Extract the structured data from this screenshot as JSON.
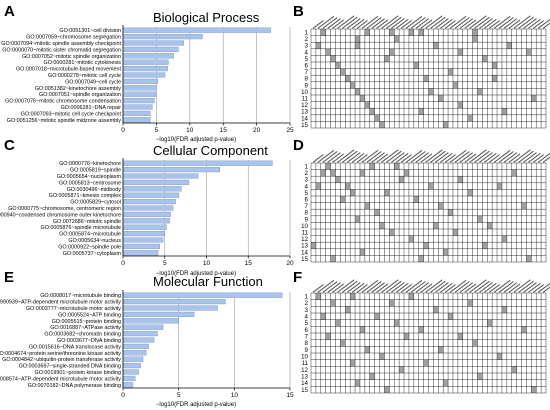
{
  "colors": {
    "bar": "#a9c3ea",
    "bar_stroke": "#5b7fb8",
    "cell_on": "#a0a0a0",
    "cell_off": "#ffffff",
    "grid": "#000000"
  },
  "panels": {
    "A": {
      "letter": "A",
      "title": "Biological Process",
      "xlabel": "−log10(FDR adjusted p-value)"
    },
    "B": {
      "letter": "B"
    },
    "C": {
      "letter": "C",
      "title": "Cellular Component",
      "xlabel": "−log10(FDR adjusted p-value)"
    },
    "D": {
      "letter": "D"
    },
    "E": {
      "letter": "E",
      "title": "Molecular Function",
      "xlabel": "−log10(FDR adjusted p-value)"
    },
    "F": {
      "letter": "F"
    }
  },
  "chart_data": [
    {
      "id": "A",
      "type": "bar",
      "orientation": "horizontal",
      "title": "Biological Process",
      "xlabel": "−log10(FDR adjusted p-value)",
      "xlim": [
        0,
        25
      ],
      "xticks": [
        0,
        5,
        10,
        15,
        20,
        25
      ],
      "categories": [
        "GO:0051301~cell division",
        "GO:0007059~chromosome segregation",
        "GO:0007094~mitotic spindle assembly checkpoint",
        "GO:0000070~mitotic sister chromatid segregation",
        "GO:0007052~mitotic spindle organization",
        "GO:0000281~mitotic cytokinesis",
        "GO:0007018~microtubule-based movement",
        "GO:0000278~mitotic cell cycle",
        "GO:0007049~cell cycle",
        "GO:0051382~kinetochore assembly",
        "GO:0007051~spindle organization",
        "GO:0007076~mitotic chromosome condensation",
        "GO:0006281~DNA repair",
        "GO:0007093~mitotic cell cycle checkpoint",
        "GO:0051256~mitotic spindle midzone assembly"
      ],
      "values": [
        22.1,
        11.9,
        9.1,
        8.3,
        7.6,
        6.8,
        6.7,
        6.3,
        5.2,
        5.0,
        4.9,
        4.7,
        4.4,
        4.1,
        4.1
      ]
    },
    {
      "id": "C",
      "type": "bar",
      "orientation": "horizontal",
      "title": "Cellular Component",
      "xlabel": "−log10(FDR adjusted p-value)",
      "xlim": [
        0,
        20
      ],
      "xticks": [
        0,
        5,
        10,
        15,
        20
      ],
      "categories": [
        "GO:0000776~kinetochore",
        "GO:0005819~spindle",
        "GO:0005654~nucleoplasm",
        "GO:0005813~centrosome",
        "GO:0030496~midbody",
        "GO:0005871~kinesin complex",
        "GO:0005829~cytosol",
        "GO:0000775~chromosome, centromeric region",
        "GO:0000940~condensed chromosome outer kinetochore",
        "GO:0072686~mitotic spindle",
        "GO:0005876~spindle microtubule",
        "GO:0005874~microtubule",
        "GO:0005634~nucleus",
        "GO:0000922~spindle pole",
        "GO:0005737~cytoplasm"
      ],
      "values": [
        17.9,
        11.6,
        9.0,
        7.9,
        7.0,
        6.7,
        6.3,
        6.0,
        5.7,
        5.6,
        5.2,
        5.0,
        4.8,
        4.4,
        4.2
      ]
    },
    {
      "id": "E",
      "type": "bar",
      "orientation": "horizontal",
      "title": "Molecular Function",
      "xlabel": "−log10(FDR adjusted p-value)",
      "xlim": [
        0,
        15
      ],
      "xticks": [
        0,
        5,
        10,
        15
      ],
      "categories": [
        "GO:0008017~microtubule binding",
        "GO:1990939~ATP-dependent microtubule motor activity",
        "GO:0003777~microtubule motor activity",
        "GO:0005524~ATP binding",
        "GO:0005515~protein binding",
        "GO:0016887~ATPase activity",
        "GO:0003682~chromatin binding",
        "GO:0003677~DNA binding",
        "GO:0015616~DNA translocase activity",
        "GO:0004674~protein serine/threonine kinase activity",
        "GO:0004842~ubiquitin-protein transferase activity",
        "GO:0003697~single-stranded DNA binding",
        "GO:0019901~protein kinase binding",
        "GO:0008574~ATP-dependent microtubule motor activity",
        "GO:0070182~DNA polymerase binding"
      ],
      "values": [
        14.3,
        9.2,
        8.5,
        6.4,
        5.0,
        3.6,
        3.1,
        2.8,
        2.3,
        2.1,
        1.8,
        1.6,
        1.4,
        1.1,
        0.9
      ]
    },
    {
      "id": "B",
      "type": "heatmap",
      "rows": [
        "1",
        "2",
        "3",
        "4",
        "5",
        "6",
        "7",
        "8",
        "9",
        "10",
        "11",
        "12",
        "13",
        "14",
        "15"
      ],
      "columns": 48,
      "filled_cells_row_col": [
        [
          1,
          3
        ],
        [
          1,
          12
        ],
        [
          1,
          17
        ],
        [
          1,
          21
        ],
        [
          1,
          23
        ],
        [
          1,
          34
        ],
        [
          2,
          10
        ],
        [
          2,
          18
        ],
        [
          2,
          34
        ],
        [
          3,
          2
        ],
        [
          3,
          10
        ],
        [
          3,
          26
        ],
        [
          3,
          41
        ],
        [
          4,
          4
        ],
        [
          4,
          17
        ],
        [
          4,
          31
        ],
        [
          4,
          45
        ],
        [
          5,
          5
        ],
        [
          5,
          16
        ],
        [
          5,
          36
        ],
        [
          6,
          6
        ],
        [
          6,
          22
        ],
        [
          6,
          38
        ],
        [
          7,
          7
        ],
        [
          7,
          29
        ],
        [
          8,
          8
        ],
        [
          8,
          24
        ],
        [
          8,
          38
        ],
        [
          9,
          9
        ],
        [
          9,
          30
        ],
        [
          10,
          10
        ],
        [
          10,
          25
        ],
        [
          10,
          35
        ],
        [
          11,
          11
        ],
        [
          11,
          27
        ],
        [
          11,
          46
        ],
        [
          12,
          12
        ],
        [
          12,
          31
        ],
        [
          13,
          13
        ],
        [
          13,
          23
        ],
        [
          13,
          40
        ],
        [
          14,
          14
        ],
        [
          14,
          33
        ],
        [
          15,
          15
        ],
        [
          15,
          28
        ]
      ]
    },
    {
      "id": "D",
      "type": "heatmap",
      "rows": [
        "1",
        "2",
        "3",
        "4",
        "5",
        "6",
        "7",
        "8",
        "9",
        "10",
        "11",
        "12",
        "13",
        "14",
        "15"
      ],
      "columns": 48,
      "filled_cells_row_col": [
        [
          1,
          4
        ],
        [
          1,
          13
        ],
        [
          1,
          18
        ],
        [
          2,
          3
        ],
        [
          2,
          5
        ],
        [
          2,
          11
        ],
        [
          2,
          20
        ],
        [
          2,
          42
        ],
        [
          3,
          6
        ],
        [
          3,
          19
        ],
        [
          3,
          31
        ],
        [
          4,
          2
        ],
        [
          4,
          8
        ],
        [
          4,
          25
        ],
        [
          4,
          39
        ],
        [
          5,
          9
        ],
        [
          5,
          16
        ],
        [
          5,
          33
        ],
        [
          6,
          7
        ],
        [
          6,
          22
        ],
        [
          7,
          12
        ],
        [
          7,
          27
        ],
        [
          7,
          44
        ],
        [
          8,
          14
        ],
        [
          8,
          29
        ],
        [
          9,
          10
        ],
        [
          9,
          35
        ],
        [
          10,
          15
        ],
        [
          10,
          26
        ],
        [
          10,
          37
        ],
        [
          11,
          17
        ],
        [
          11,
          30
        ],
        [
          12,
          21
        ],
        [
          12,
          40
        ],
        [
          13,
          1
        ],
        [
          13,
          24
        ],
        [
          13,
          36
        ],
        [
          14,
          11
        ],
        [
          14,
          28
        ],
        [
          15,
          5
        ],
        [
          15,
          23
        ],
        [
          15,
          45
        ]
      ]
    },
    {
      "id": "F",
      "type": "heatmap",
      "rows": [
        "1",
        "2",
        "3",
        "4",
        "5",
        "6",
        "7",
        "8",
        "9",
        "10",
        "11",
        "12",
        "13",
        "14",
        "15"
      ],
      "columns": 48,
      "filled_cells_row_col": [
        [
          1,
          2
        ],
        [
          1,
          9
        ],
        [
          1,
          21
        ],
        [
          2,
          5
        ],
        [
          2,
          17
        ],
        [
          2,
          33
        ],
        [
          3,
          8
        ],
        [
          3,
          26
        ],
        [
          3,
          40
        ],
        [
          4,
          3
        ],
        [
          4,
          14
        ],
        [
          4,
          29
        ],
        [
          5,
          6
        ],
        [
          5,
          18
        ],
        [
          5,
          37
        ],
        [
          6,
          11
        ],
        [
          6,
          23
        ],
        [
          6,
          44
        ],
        [
          7,
          4
        ],
        [
          7,
          20
        ],
        [
          7,
          31
        ],
        [
          8,
          7
        ],
        [
          8,
          34
        ],
        [
          9,
          12
        ],
        [
          9,
          27
        ],
        [
          10,
          15
        ],
        [
          10,
          39
        ],
        [
          11,
          9
        ],
        [
          11,
          24
        ],
        [
          12,
          19
        ],
        [
          12,
          42
        ],
        [
          13,
          13
        ],
        [
          13,
          35
        ],
        [
          14,
          10
        ],
        [
          14,
          28
        ],
        [
          15,
          16
        ],
        [
          15,
          46
        ]
      ]
    }
  ]
}
